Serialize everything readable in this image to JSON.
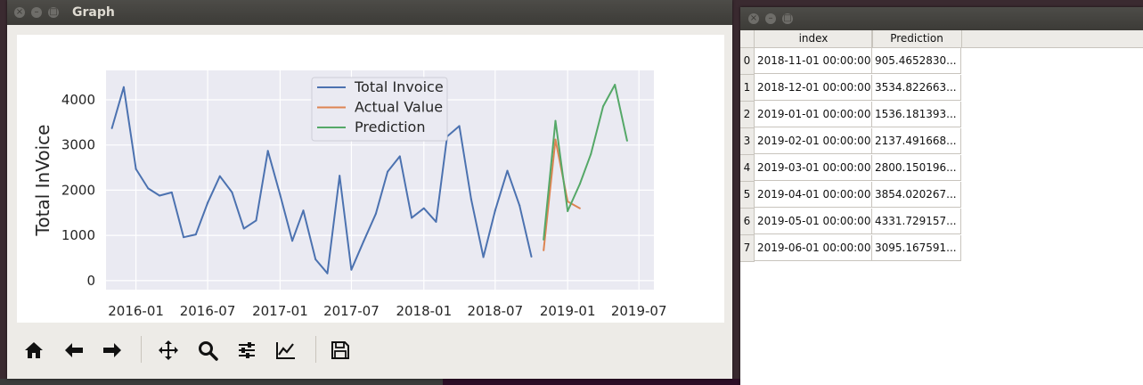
{
  "graph_window": {
    "title": "Graph",
    "titlebar_buttons": [
      "close",
      "minimize",
      "maximize"
    ],
    "toolbar": [
      {
        "name": "home-icon"
      },
      {
        "name": "back-arrow-icon"
      },
      {
        "name": "forward-arrow-icon"
      },
      {
        "name": "pan-icon"
      },
      {
        "name": "zoom-icon"
      },
      {
        "name": "subplots-config-icon"
      },
      {
        "name": "edit-axes-icon"
      },
      {
        "name": "save-icon"
      }
    ]
  },
  "chart_data": {
    "type": "line",
    "title": "",
    "xlabel": "",
    "ylabel": "Total InVoice",
    "grid": true,
    "legend_position": "top-center",
    "background": "#eaeaf2",
    "x_ticks": [
      "2016-01",
      "2016-07",
      "2017-01",
      "2017-07",
      "2018-01",
      "2018-07",
      "2019-01",
      "2019-07"
    ],
    "y_ticks": [
      0,
      1000,
      2000,
      3000,
      4000
    ],
    "ylim": [
      -200,
      4650
    ],
    "xlim": [
      "2015-10-17",
      "2019-08-08"
    ],
    "series": [
      {
        "name": "Total Invoice",
        "color": "#4c72b0",
        "x": [
          "2015-11-01",
          "2015-12-01",
          "2016-01-01",
          "2016-02-01",
          "2016-03-01",
          "2016-04-01",
          "2016-05-01",
          "2016-06-01",
          "2016-07-01",
          "2016-08-01",
          "2016-09-01",
          "2016-10-01",
          "2016-11-01",
          "2016-12-01",
          "2017-01-01",
          "2017-02-01",
          "2017-03-01",
          "2017-04-01",
          "2017-05-01",
          "2017-06-01",
          "2017-07-01",
          "2017-08-01",
          "2017-09-01",
          "2017-10-01",
          "2017-11-01",
          "2017-12-01",
          "2018-01-01",
          "2018-02-01",
          "2018-03-01",
          "2018-04-01",
          "2018-05-01",
          "2018-06-01",
          "2018-07-01",
          "2018-08-01",
          "2018-09-01",
          "2018-10-01"
        ],
        "values": [
          3370,
          4280,
          2470,
          2040,
          1880,
          1950,
          960,
          1020,
          1720,
          2310,
          1950,
          1150,
          1330,
          2870,
          1900,
          880,
          1550,
          470,
          160,
          2320,
          240,
          870,
          1480,
          2410,
          2750,
          1390,
          1600,
          1300,
          3190,
          3420,
          1800,
          520,
          1550,
          2430,
          1660,
          530
        ]
      },
      {
        "name": "Actual Value",
        "color": "#dd8452",
        "x": [
          "2018-11-01",
          "2018-12-01",
          "2019-01-01",
          "2019-02-01"
        ],
        "values": [
          670,
          3120,
          1750,
          1600
        ]
      },
      {
        "name": "Prediction",
        "color": "#55a868",
        "x": [
          "2018-11-01",
          "2018-12-01",
          "2019-01-01",
          "2019-02-01",
          "2019-03-01",
          "2019-04-01",
          "2019-05-01",
          "2019-06-01"
        ],
        "values": [
          905.47,
          3534.82,
          1536.18,
          2137.49,
          2800.15,
          3854.02,
          4331.73,
          3095.17
        ]
      }
    ]
  },
  "table_window": {
    "titlebar_buttons": [
      "close",
      "minimize",
      "maximize"
    ],
    "columns": [
      "index",
      "Prediction"
    ],
    "rows": [
      {
        "row": "0",
        "index": "2018-11-01 00:00:00",
        "prediction": "905.4652830..."
      },
      {
        "row": "1",
        "index": "2018-12-01 00:00:00",
        "prediction": "3534.822663..."
      },
      {
        "row": "2",
        "index": "2019-01-01 00:00:00",
        "prediction": "1536.181393..."
      },
      {
        "row": "3",
        "index": "2019-02-01 00:00:00",
        "prediction": "2137.491668..."
      },
      {
        "row": "4",
        "index": "2019-03-01 00:00:00",
        "prediction": "2800.150196..."
      },
      {
        "row": "5",
        "index": "2019-04-01 00:00:00",
        "prediction": "3854.020267..."
      },
      {
        "row": "6",
        "index": "2019-05-01 00:00:00",
        "prediction": "4331.729157..."
      },
      {
        "row": "7",
        "index": "2019-06-01 00:00:00",
        "prediction": "3095.167591..."
      }
    ]
  }
}
